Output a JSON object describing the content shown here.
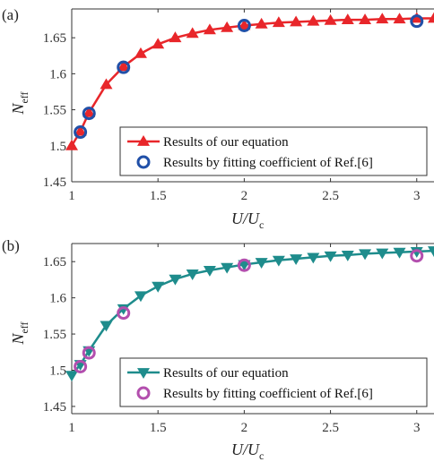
{
  "chart_data": [
    {
      "panel_label": "(a)",
      "type": "line",
      "xlabel": "U/U",
      "xlabel_sub": "c",
      "ylabel": "N",
      "ylabel_sub": "eff",
      "xlim": [
        1,
        3.1
      ],
      "ylim": [
        1.45,
        1.69
      ],
      "xticks": [
        1,
        1.5,
        2,
        2.5,
        3
      ],
      "xtick_labels": [
        "1",
        "1.5",
        "2",
        "2.5",
        "3"
      ],
      "yticks": [
        1.45,
        1.5,
        1.55,
        1.6,
        1.65
      ],
      "ytick_labels": [
        "1.45",
        "1.5",
        "1.55",
        "1.6",
        "1.65"
      ],
      "legend_position": "lower-right",
      "series": [
        {
          "name": "Results of our equation",
          "color": "#e8262a",
          "marker": "triangle-up",
          "x": [
            1,
            1.05,
            1.1,
            1.2,
            1.3,
            1.4,
            1.5,
            1.6,
            1.7,
            1.8,
            1.9,
            2.0,
            2.1,
            2.2,
            2.3,
            2.4,
            2.5,
            2.6,
            2.7,
            2.8,
            2.9,
            3.0,
            3.1
          ],
          "y": [
            1.5,
            1.52,
            1.546,
            1.585,
            1.61,
            1.628,
            1.641,
            1.65,
            1.656,
            1.661,
            1.664,
            1.667,
            1.669,
            1.671,
            1.672,
            1.673,
            1.674,
            1.675,
            1.675,
            1.676,
            1.676,
            1.677,
            1.677
          ]
        },
        {
          "name": "Results by fitting coefficient of Ref.[6]",
          "color": "#2150a8",
          "marker": "circle",
          "x": [
            1.05,
            1.1,
            1.3,
            2.0,
            3.0
          ],
          "y": [
            1.519,
            1.545,
            1.609,
            1.667,
            1.673
          ]
        }
      ]
    },
    {
      "panel_label": "(b)",
      "type": "line",
      "xlabel": "U/U",
      "xlabel_sub": "c",
      "ylabel": "N",
      "ylabel_sub": "eff",
      "xlim": [
        1,
        3.1
      ],
      "ylim": [
        1.44,
        1.675
      ],
      "xticks": [
        1,
        1.5,
        2,
        2.5,
        3
      ],
      "xtick_labels": [
        "1",
        "1.5",
        "2",
        "2.5",
        "3"
      ],
      "yticks": [
        1.45,
        1.5,
        1.55,
        1.6,
        1.65
      ],
      "ytick_labels": [
        "1.45",
        "1.5",
        "1.55",
        "1.6",
        "1.65"
      ],
      "legend_position": "lower-right",
      "series": [
        {
          "name": "Results of our equation",
          "color": "#1e8c8c",
          "marker": "triangle-down",
          "x": [
            1,
            1.05,
            1.1,
            1.2,
            1.3,
            1.4,
            1.5,
            1.6,
            1.7,
            1.8,
            1.9,
            2.0,
            2.1,
            2.2,
            2.3,
            2.4,
            2.5,
            2.6,
            2.7,
            2.8,
            2.9,
            3.0,
            3.1
          ],
          "y": [
            1.493,
            1.508,
            1.527,
            1.562,
            1.585,
            1.603,
            1.616,
            1.626,
            1.633,
            1.638,
            1.642,
            1.646,
            1.649,
            1.652,
            1.654,
            1.656,
            1.658,
            1.659,
            1.661,
            1.662,
            1.663,
            1.664,
            1.665
          ]
        },
        {
          "name": "Results by fitting coefficient of Ref.[6]",
          "color": "#b34fae",
          "marker": "circle",
          "x": [
            1.05,
            1.1,
            1.3,
            2.0,
            3.0
          ],
          "y": [
            1.505,
            1.524,
            1.579,
            1.645,
            1.658
          ]
        }
      ]
    }
  ]
}
